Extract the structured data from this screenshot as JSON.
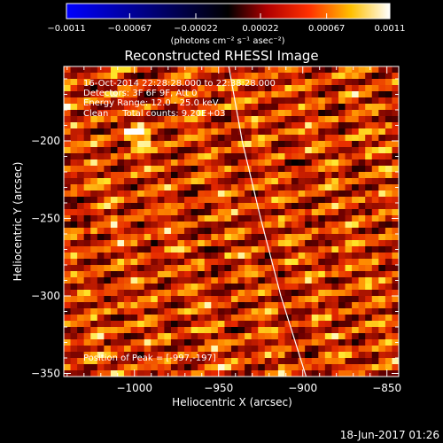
{
  "chart_data": {
    "type": "heatmap",
    "title": "Reconstructed RHESSI Image",
    "xlabel": "Heliocentric X (arcsec)",
    "ylabel": "Heliocentric Y (arcsec)",
    "xlim": [
      -1042,
      -843
    ],
    "ylim": [
      -352,
      -152
    ],
    "x_ticks": [
      -1000,
      -950,
      -900,
      -850
    ],
    "y_ticks": [
      -350,
      -300,
      -250,
      -200
    ],
    "x_tick_labels": [
      "−1000",
      "−950",
      "−900",
      "−850"
    ],
    "y_tick_labels": [
      "−350",
      "−300",
      "−250",
      "−200"
    ],
    "colorbar": {
      "range": [
        -0.0011,
        0.0011
      ],
      "ticks": [
        -0.0011,
        -0.00067,
        -0.00022,
        0.00022,
        0.00067,
        0.0011
      ],
      "tick_labels": [
        "−0.0011",
        "−0.00067",
        "−0.00022",
        "0.00022",
        "0.00067",
        "0.0011"
      ],
      "units_label": "(photons cm⁻² s⁻¹ asec⁻²)",
      "colors": [
        "#0000ff",
        "#000000",
        "#ff0000",
        "#ffff00",
        "#ffffff"
      ]
    },
    "annotations": [
      "16-Oct-2014 22:28:28.000 to 22:38:28.000",
      "Detectors: 3F 6F 9F, Att 0",
      "Energy Range: 12.0 - 25.0 keV",
      "Clean     Total counts: 9.20E+03"
    ],
    "peak_label": "Position of Peak = [-997,-197]",
    "peak_position": [
      -997,
      -197
    ],
    "limb_curve": [
      [
        -944,
        -152
      ],
      [
        -936,
        -200
      ],
      [
        -925,
        -250
      ],
      [
        -913,
        -300
      ],
      [
        -898,
        -352
      ]
    ],
    "grid_cell_size_arcsec": 4,
    "grid": {
      "cols": 50,
      "rows": 50,
      "pattern": "diagonal fringe stripes of alternating bright/dark pixels, mostly red-orange with scattered yellow-white"
    }
  },
  "footer": {
    "timestamp": "18-Jun-2017 01:26"
  }
}
